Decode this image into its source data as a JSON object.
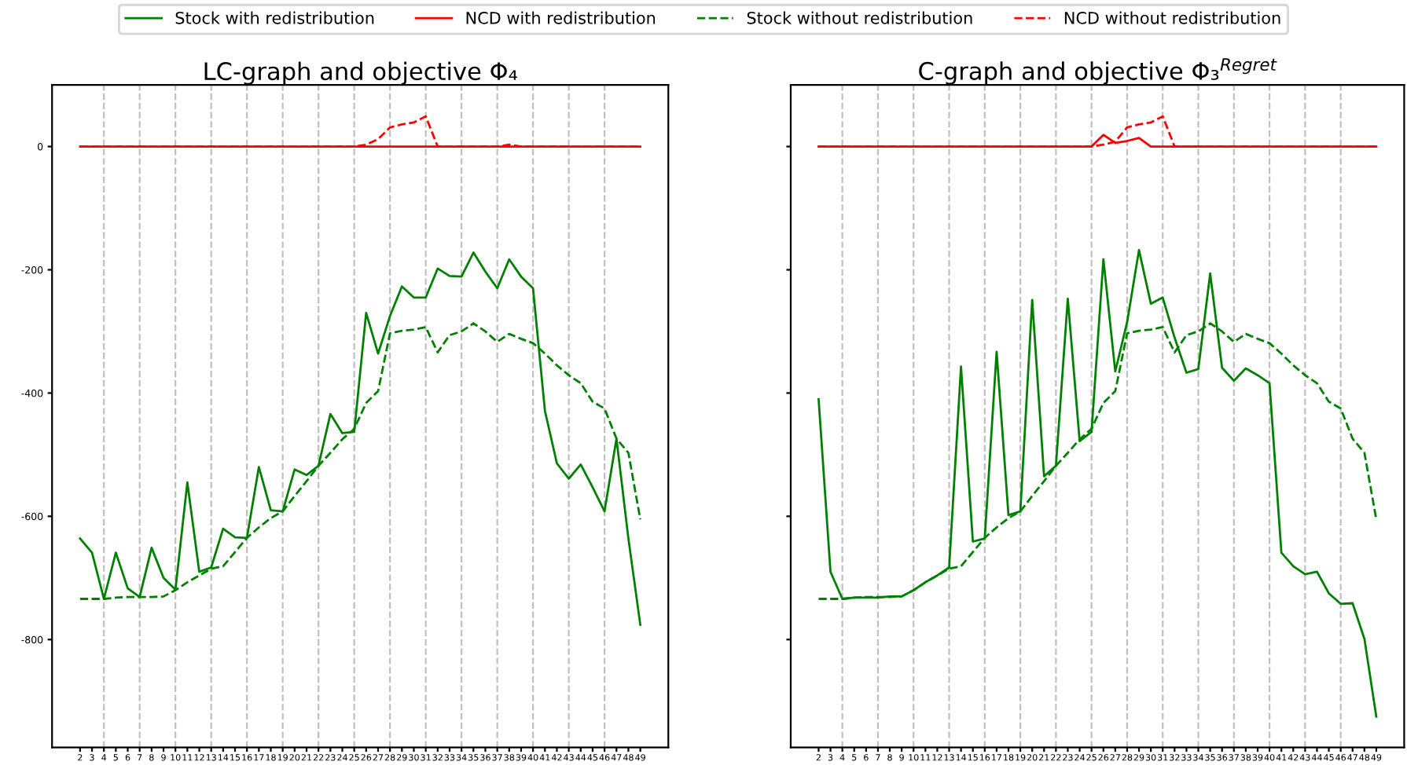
{
  "chart_data": [
    {
      "type": "line",
      "title": "LC-graph and objective Φ₄",
      "x": [
        2,
        3,
        4,
        5,
        6,
        7,
        8,
        9,
        10,
        11,
        12,
        13,
        14,
        15,
        16,
        17,
        18,
        19,
        20,
        21,
        22,
        23,
        24,
        25,
        26,
        27,
        28,
        29,
        30,
        31,
        32,
        33,
        34,
        35,
        36,
        37,
        38,
        39,
        40,
        41,
        42,
        43,
        44,
        45,
        46,
        47,
        48,
        49
      ],
      "xlim": [
        -0.35,
        51.35
      ],
      "xticks": [
        2,
        3,
        4,
        5,
        6,
        7,
        8,
        9,
        10,
        11,
        12,
        13,
        14,
        15,
        16,
        17,
        18,
        19,
        20,
        21,
        22,
        23,
        24,
        25,
        26,
        27,
        28,
        29,
        30,
        31,
        32,
        33,
        34,
        35,
        36,
        37,
        38,
        39,
        40,
        41,
        42,
        43,
        44,
        45,
        46,
        47,
        48,
        49
      ],
      "ylim": [
        -975,
        100
      ],
      "yticks": [
        0,
        -200,
        -400,
        -600,
        -800
      ],
      "legend": "top",
      "ref_lines": [
        {
          "axis": "x",
          "value": 4,
          "color": "#c0c0c0",
          "line_style": "dashed"
        },
        {
          "axis": "x",
          "value": 7,
          "color": "#c0c0c0",
          "line_style": "dashed"
        },
        {
          "axis": "x",
          "value": 10,
          "color": "#c0c0c0",
          "line_style": "dashed"
        },
        {
          "axis": "x",
          "value": 13,
          "color": "#c0c0c0",
          "line_style": "dashed"
        },
        {
          "axis": "x",
          "value": 16,
          "color": "#c0c0c0",
          "line_style": "dashed"
        },
        {
          "axis": "x",
          "value": 19,
          "color": "#c0c0c0",
          "line_style": "dashed"
        },
        {
          "axis": "x",
          "value": 22,
          "color": "#c0c0c0",
          "line_style": "dashed"
        },
        {
          "axis": "x",
          "value": 25,
          "color": "#c0c0c0",
          "line_style": "dashed"
        },
        {
          "axis": "x",
          "value": 28,
          "color": "#c0c0c0",
          "line_style": "dashed"
        },
        {
          "axis": "x",
          "value": 31,
          "color": "#c0c0c0",
          "line_style": "dashed"
        },
        {
          "axis": "x",
          "value": 34,
          "color": "#c0c0c0",
          "line_style": "dashed"
        },
        {
          "axis": "x",
          "value": 37,
          "color": "#c0c0c0",
          "line_style": "dashed"
        },
        {
          "axis": "x",
          "value": 40,
          "color": "#c0c0c0",
          "line_style": "dashed"
        },
        {
          "axis": "x",
          "value": 43,
          "color": "#c0c0c0",
          "line_style": "dashed"
        },
        {
          "axis": "x",
          "value": 46,
          "color": "#c0c0c0",
          "line_style": "dashed"
        }
      ],
      "series": [
        {
          "name": "Stock with redistribution",
          "color": "#008000",
          "line_style": "solid",
          "values": [
            -636,
            -659,
            -734,
            -659,
            -717,
            -731,
            -651,
            -700,
            -719,
            -545,
            -690,
            -683,
            -620,
            -634,
            -635,
            -520,
            -590,
            -592,
            -524,
            -533,
            -518,
            -434,
            -465,
            -463,
            -270,
            -336,
            -275,
            -227,
            -245,
            -245,
            -198,
            -210,
            -211,
            -172,
            -203,
            -230,
            -183,
            -211,
            -230,
            -429,
            -514,
            -539,
            -516,
            -553,
            -592,
            -474,
            -636,
            -776
          ]
        },
        {
          "name": "NCD with redistribution",
          "color": "#ff0000",
          "line_style": "solid",
          "values": [
            0,
            0,
            0,
            0,
            0,
            0,
            0,
            0,
            0,
            0,
            0,
            0,
            0,
            0,
            0,
            0,
            0,
            0,
            0,
            0,
            0,
            0,
            0,
            0,
            0,
            0,
            0,
            0,
            0,
            0,
            0,
            0,
            0,
            0,
            0,
            0,
            0,
            0,
            0,
            0,
            0,
            0,
            0,
            0,
            0,
            0,
            0,
            0
          ]
        },
        {
          "name": "Stock without redistribution",
          "color": "#008000",
          "line_style": "dashed",
          "values": [
            -734,
            -734,
            -734,
            -732,
            -731,
            -731,
            -731,
            -730,
            -720,
            -707,
            -696,
            -685,
            -681,
            -658,
            -635,
            -618,
            -603,
            -592,
            -567,
            -543,
            -518,
            -497,
            -475,
            -458,
            -416,
            -397,
            -303,
            -299,
            -297,
            -293,
            -334,
            -306,
            -300,
            -287,
            -300,
            -317,
            -304,
            -312,
            -319,
            -336,
            -355,
            -371,
            -384,
            -414,
            -425,
            -474,
            -497,
            -605
          ]
        },
        {
          "name": "NCD without redistribution",
          "color": "#ff0000",
          "line_style": "dashed",
          "values": [
            0,
            0,
            0,
            0,
            0,
            0,
            0,
            0,
            0,
            0,
            0,
            0,
            0,
            0,
            0,
            0,
            0,
            0,
            0,
            0,
            0,
            0,
            0,
            0,
            3,
            12,
            31,
            36,
            39,
            49,
            0,
            0,
            0,
            0,
            0,
            0,
            3,
            0,
            0,
            0,
            0,
            0,
            0,
            0,
            0,
            0,
            0,
            0
          ]
        }
      ]
    },
    {
      "type": "line",
      "title": "C-graph and objective Φ₃$^{Regret}$",
      "x": [
        2,
        3,
        4,
        5,
        6,
        7,
        8,
        9,
        10,
        11,
        12,
        13,
        14,
        15,
        16,
        17,
        18,
        19,
        20,
        21,
        22,
        23,
        24,
        25,
        26,
        27,
        28,
        29,
        30,
        31,
        32,
        33,
        34,
        35,
        36,
        37,
        38,
        39,
        40,
        41,
        42,
        43,
        44,
        45,
        46,
        47,
        48,
        49
      ],
      "xlim": [
        -0.35,
        51.35
      ],
      "xticks": [
        2,
        3,
        4,
        5,
        6,
        7,
        8,
        9,
        10,
        11,
        12,
        13,
        14,
        15,
        16,
        17,
        18,
        19,
        20,
        21,
        22,
        23,
        24,
        25,
        26,
        27,
        28,
        29,
        30,
        31,
        32,
        33,
        34,
        35,
        36,
        37,
        38,
        39,
        40,
        41,
        42,
        43,
        44,
        45,
        46,
        47,
        48,
        49
      ],
      "ylim": [
        -975,
        100
      ],
      "yticks": [
        0,
        -200,
        -400,
        -600,
        -800
      ],
      "tick_labels": "x",
      "ref_lines": [
        {
          "axis": "x",
          "value": 4,
          "color": "#c0c0c0",
          "line_style": "dashed"
        },
        {
          "axis": "x",
          "value": 7,
          "color": "#c0c0c0",
          "line_style": "dashed"
        },
        {
          "axis": "x",
          "value": 10,
          "color": "#c0c0c0",
          "line_style": "dashed"
        },
        {
          "axis": "x",
          "value": 13,
          "color": "#c0c0c0",
          "line_style": "dashed"
        },
        {
          "axis": "x",
          "value": 16,
          "color": "#c0c0c0",
          "line_style": "dashed"
        },
        {
          "axis": "x",
          "value": 19,
          "color": "#c0c0c0",
          "line_style": "dashed"
        },
        {
          "axis": "x",
          "value": 22,
          "color": "#c0c0c0",
          "line_style": "dashed"
        },
        {
          "axis": "x",
          "value": 25,
          "color": "#c0c0c0",
          "line_style": "dashed"
        },
        {
          "axis": "x",
          "value": 28,
          "color": "#c0c0c0",
          "line_style": "dashed"
        },
        {
          "axis": "x",
          "value": 31,
          "color": "#c0c0c0",
          "line_style": "dashed"
        },
        {
          "axis": "x",
          "value": 34,
          "color": "#c0c0c0",
          "line_style": "dashed"
        },
        {
          "axis": "x",
          "value": 37,
          "color": "#c0c0c0",
          "line_style": "dashed"
        },
        {
          "axis": "x",
          "value": 40,
          "color": "#c0c0c0",
          "line_style": "dashed"
        },
        {
          "axis": "x",
          "value": 43,
          "color": "#c0c0c0",
          "line_style": "dashed"
        },
        {
          "axis": "x",
          "value": 46,
          "color": "#c0c0c0",
          "line_style": "dashed"
        }
      ],
      "series": [
        {
          "color": "#008000",
          "line_style": "solid",
          "values": [
            -410,
            -690,
            -734,
            -732,
            -732,
            -732,
            -730,
            -730,
            -720,
            -707,
            -696,
            -683,
            -357,
            -641,
            -636,
            -333,
            -598,
            -592,
            -249,
            -535,
            -518,
            -247,
            -478,
            -463,
            -183,
            -365,
            -285,
            -168,
            -255,
            -245,
            -310,
            -367,
            -361,
            -206,
            -359,
            -380,
            -360,
            -371,
            -384,
            -659,
            -681,
            -694,
            -690,
            -725,
            -742,
            -741,
            -799,
            -925
          ]
        },
        {
          "color": "#ff0000",
          "line_style": "solid",
          "values": [
            0,
            0,
            0,
            0,
            0,
            0,
            0,
            0,
            0,
            0,
            0,
            0,
            0,
            0,
            0,
            0,
            0,
            0,
            0,
            0,
            0,
            0,
            0,
            0,
            19,
            6,
            9,
            14,
            0,
            0,
            0,
            0,
            0,
            0,
            0,
            0,
            0,
            0,
            0,
            0,
            0,
            0,
            0,
            0,
            0,
            0,
            0,
            0
          ]
        },
        {
          "color": "#008000",
          "line_style": "dashed",
          "values": [
            -734,
            -734,
            -734,
            -732,
            -731,
            -731,
            -731,
            -730,
            -720,
            -707,
            -696,
            -685,
            -681,
            -658,
            -635,
            -618,
            -603,
            -592,
            -567,
            -543,
            -518,
            -497,
            -475,
            -458,
            -416,
            -397,
            -303,
            -299,
            -297,
            -293,
            -334,
            -306,
            -300,
            -287,
            -300,
            -317,
            -304,
            -312,
            -319,
            -336,
            -355,
            -371,
            -384,
            -414,
            -425,
            -474,
            -497,
            -605
          ]
        },
        {
          "color": "#ff0000",
          "line_style": "dashed",
          "values": [
            0,
            0,
            0,
            0,
            0,
            0,
            0,
            0,
            0,
            0,
            0,
            0,
            0,
            0,
            0,
            0,
            0,
            0,
            0,
            0,
            0,
            0,
            0,
            0,
            3,
            8,
            31,
            36,
            39,
            49,
            0,
            0,
            0,
            0,
            0,
            0,
            0,
            0,
            0,
            0,
            0,
            0,
            0,
            0,
            0,
            0,
            0,
            0
          ]
        }
      ]
    }
  ]
}
